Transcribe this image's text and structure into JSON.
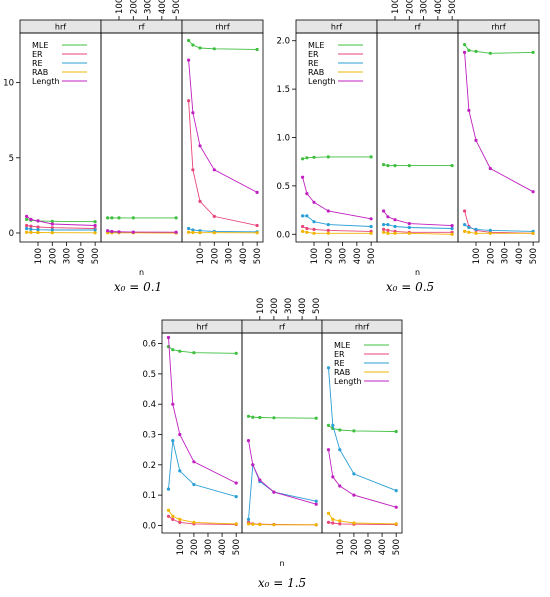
{
  "series_meta": [
    {
      "key": "MLE",
      "color": "#3fbf3f"
    },
    {
      "key": "ER",
      "color": "#e8457a"
    },
    {
      "key": "RE",
      "color": "#2a9fd6"
    },
    {
      "key": "RAB",
      "color": "#f0b400"
    },
    {
      "key": "Length",
      "color": "#c020c0"
    }
  ],
  "chart_data": [
    {
      "type": "line",
      "caption": "x₀ = 0.1",
      "xlabel": "n",
      "panels": [
        "hrf",
        "rf",
        "rhrf"
      ],
      "x": [
        20,
        50,
        100,
        200,
        500
      ],
      "xticks": [
        100,
        200,
        300,
        400,
        500
      ],
      "ylim": [
        -0.6,
        13.3
      ],
      "yticks": [
        0,
        5,
        10
      ],
      "ytick_labels": [
        "0",
        "5",
        "10"
      ],
      "legend": [
        "MLE",
        "ER",
        "RE",
        "RAB",
        "Length"
      ],
      "legend_panel": 0,
      "series": [
        {
          "name": "MLE",
          "panel": 0,
          "values": [
            0.9,
            0.85,
            0.8,
            0.78,
            0.75
          ]
        },
        {
          "name": "ER",
          "panel": 0,
          "values": [
            0.5,
            0.45,
            0.4,
            0.35,
            0.3
          ]
        },
        {
          "name": "RE",
          "panel": 0,
          "values": [
            0.3,
            0.25,
            0.22,
            0.2,
            0.2
          ]
        },
        {
          "name": "RAB",
          "panel": 0,
          "values": [
            0.05,
            0.04,
            0.03,
            0.02,
            0.01
          ]
        },
        {
          "name": "Length",
          "panel": 0,
          "values": [
            1.1,
            0.9,
            0.8,
            0.6,
            0.5
          ]
        },
        {
          "name": "MLE",
          "panel": 1,
          "values": [
            1.0,
            1.0,
            1.0,
            1.0,
            1.0
          ]
        },
        {
          "name": "ER",
          "panel": 1,
          "values": [
            0.1,
            0.05,
            0.05,
            0.03,
            0.02
          ]
        },
        {
          "name": "RE",
          "panel": 1,
          "values": [
            0.08,
            0.06,
            0.05,
            0.04,
            0.03
          ]
        },
        {
          "name": "RAB",
          "panel": 1,
          "values": [
            0.02,
            0.01,
            0.01,
            0.01,
            0.0
          ]
        },
        {
          "name": "Length",
          "panel": 1,
          "values": [
            0.15,
            0.1,
            0.08,
            0.06,
            0.05
          ]
        },
        {
          "name": "MLE",
          "panel": 2,
          "values": [
            12.8,
            12.5,
            12.3,
            12.25,
            12.2
          ]
        },
        {
          "name": "ER",
          "panel": 2,
          "values": [
            8.8,
            4.2,
            2.1,
            1.1,
            0.5
          ]
        },
        {
          "name": "RE",
          "panel": 2,
          "values": [
            0.3,
            0.2,
            0.15,
            0.1,
            0.08
          ]
        },
        {
          "name": "RAB",
          "panel": 2,
          "values": [
            0.05,
            0.03,
            0.02,
            0.02,
            0.01
          ]
        },
        {
          "name": "Length",
          "panel": 2,
          "values": [
            11.5,
            8.0,
            5.8,
            4.2,
            2.7
          ]
        }
      ]
    },
    {
      "type": "line",
      "caption": "x₀ = 0.5",
      "xlabel": "n",
      "panels": [
        "hrf",
        "rf",
        "rhrf"
      ],
      "x": [
        20,
        50,
        100,
        200,
        500
      ],
      "xticks": [
        100,
        200,
        300,
        400,
        500
      ],
      "ylim": [
        -0.08,
        2.08
      ],
      "yticks": [
        0,
        0.5,
        1.0,
        1.5,
        2.0
      ],
      "ytick_labels": [
        "0.0",
        "0.5",
        "1.0",
        "1.5",
        "2.0"
      ],
      "legend": [
        "MLE",
        "ER",
        "RE",
        "RAB",
        "Length"
      ],
      "legend_panel": 0,
      "series": [
        {
          "name": "MLE",
          "panel": 0,
          "values": [
            0.78,
            0.79,
            0.795,
            0.8,
            0.8
          ]
        },
        {
          "name": "ER",
          "panel": 0,
          "values": [
            0.08,
            0.06,
            0.05,
            0.04,
            0.03
          ]
        },
        {
          "name": "RE",
          "panel": 0,
          "values": [
            0.19,
            0.19,
            0.13,
            0.1,
            0.08
          ]
        },
        {
          "name": "RAB",
          "panel": 0,
          "values": [
            0.03,
            0.02,
            0.01,
            0.01,
            0.01
          ]
        },
        {
          "name": "Length",
          "panel": 0,
          "values": [
            0.59,
            0.42,
            0.33,
            0.24,
            0.16
          ]
        },
        {
          "name": "MLE",
          "panel": 1,
          "values": [
            0.72,
            0.71,
            0.71,
            0.71,
            0.71
          ]
        },
        {
          "name": "ER",
          "panel": 1,
          "values": [
            0.05,
            0.04,
            0.03,
            0.02,
            0.02
          ]
        },
        {
          "name": "RE",
          "panel": 1,
          "values": [
            0.1,
            0.1,
            0.08,
            0.07,
            0.06
          ]
        },
        {
          "name": "RAB",
          "panel": 1,
          "values": [
            0.02,
            0.01,
            0.01,
            0.01,
            0.0
          ]
        },
        {
          "name": "Length",
          "panel": 1,
          "values": [
            0.24,
            0.18,
            0.15,
            0.11,
            0.09
          ]
        },
        {
          "name": "MLE",
          "panel": 2,
          "values": [
            1.96,
            1.9,
            1.89,
            1.87,
            1.88
          ]
        },
        {
          "name": "ER",
          "panel": 2,
          "values": [
            0.24,
            0.08,
            0.04,
            0.02,
            0.01
          ]
        },
        {
          "name": "RE",
          "panel": 2,
          "values": [
            0.1,
            0.07,
            0.05,
            0.04,
            0.03
          ]
        },
        {
          "name": "RAB",
          "panel": 2,
          "values": [
            0.03,
            0.02,
            0.01,
            0.01,
            0.01
          ]
        },
        {
          "name": "Length",
          "panel": 2,
          "values": [
            1.88,
            1.28,
            0.97,
            0.68,
            0.44
          ]
        }
      ]
    },
    {
      "type": "line",
      "caption": "x₀ = 1.5",
      "xlabel": "n",
      "panels": [
        "hrf",
        "rf",
        "rhrf"
      ],
      "x": [
        20,
        50,
        100,
        200,
        500
      ],
      "xticks": [
        100,
        200,
        300,
        400,
        500
      ],
      "ylim": [
        -0.025,
        0.635
      ],
      "yticks": [
        0,
        0.1,
        0.2,
        0.3,
        0.4,
        0.5,
        0.6
      ],
      "ytick_labels": [
        "0.0",
        "0.1",
        "0.2",
        "0.3",
        "0.4",
        "0.5",
        "0.6"
      ],
      "legend": [
        "MLE",
        "ER",
        "RE",
        "RAB",
        "Length"
      ],
      "legend_panel": 2,
      "series": [
        {
          "name": "MLE",
          "panel": 0,
          "values": [
            0.59,
            0.58,
            0.575,
            0.57,
            0.568
          ]
        },
        {
          "name": "ER",
          "panel": 0,
          "values": [
            0.03,
            0.02,
            0.01,
            0.005,
            0.003
          ]
        },
        {
          "name": "RE",
          "panel": 0,
          "values": [
            0.12,
            0.28,
            0.18,
            0.135,
            0.095
          ]
        },
        {
          "name": "RAB",
          "panel": 0,
          "values": [
            0.05,
            0.03,
            0.02,
            0.01,
            0.005
          ]
        },
        {
          "name": "Length",
          "panel": 0,
          "values": [
            0.62,
            0.4,
            0.3,
            0.21,
            0.14
          ]
        },
        {
          "name": "MLE",
          "panel": 1,
          "values": [
            0.36,
            0.357,
            0.356,
            0.355,
            0.354
          ]
        },
        {
          "name": "ER",
          "panel": 1,
          "values": [
            0.01,
            0.005,
            0.004,
            0.003,
            0.002
          ]
        },
        {
          "name": "RE",
          "panel": 1,
          "values": [
            0.02,
            0.2,
            0.145,
            0.11,
            0.08
          ]
        },
        {
          "name": "RAB",
          "panel": 1,
          "values": [
            0.005,
            0.004,
            0.003,
            0.002,
            0.002
          ]
        },
        {
          "name": "Length",
          "panel": 1,
          "values": [
            0.28,
            0.2,
            0.15,
            0.11,
            0.07
          ]
        },
        {
          "name": "MLE",
          "panel": 2,
          "values": [
            0.33,
            0.32,
            0.315,
            0.312,
            0.31
          ]
        },
        {
          "name": "ER",
          "panel": 2,
          "values": [
            0.01,
            0.008,
            0.005,
            0.004,
            0.003
          ]
        },
        {
          "name": "RE",
          "panel": 2,
          "values": [
            0.52,
            0.33,
            0.25,
            0.17,
            0.115
          ]
        },
        {
          "name": "RAB",
          "panel": 2,
          "values": [
            0.04,
            0.02,
            0.015,
            0.008,
            0.005
          ]
        },
        {
          "name": "Length",
          "panel": 2,
          "values": [
            0.25,
            0.16,
            0.13,
            0.1,
            0.06
          ]
        }
      ]
    }
  ]
}
